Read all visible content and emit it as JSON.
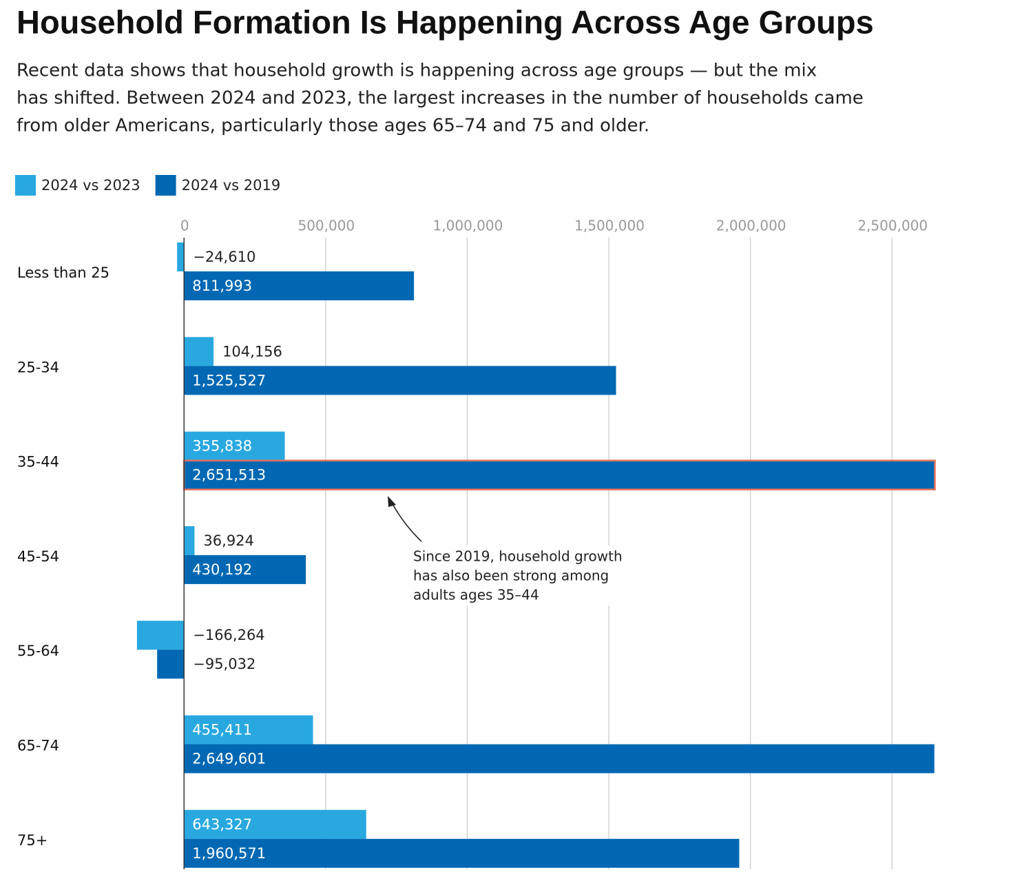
{
  "chart_data": {
    "type": "bar",
    "orientation": "horizontal",
    "title": "Household Formation Is Happening Across Age Groups",
    "subtitle": [
      "Recent data shows that household growth is happening across age groups — but the mix",
      "has shifted. Between 2024 and 2023, the largest increases in the number of households came",
      "from older Americans, particularly those ages 65–74 and 75 and older."
    ],
    "categories": [
      "Less than 25",
      "25-34",
      "35-44",
      "45-54",
      "55-64",
      "65-74",
      "75+"
    ],
    "series": [
      {
        "name": "2024 vs 2023",
        "color": "#29a8e0",
        "values": [
          -24610,
          104156,
          355838,
          36924,
          -166264,
          455411,
          643327
        ],
        "value_labels": [
          "−24,610",
          "104,156",
          "355,838",
          "36,924",
          "−166,264",
          "455,411",
          "643,327"
        ]
      },
      {
        "name": "2024 vs 2019",
        "color": "#0068b3",
        "values": [
          811993,
          1525527,
          2651513,
          430192,
          -95032,
          2649601,
          1960571
        ],
        "value_labels": [
          "811,993",
          "1,525,527",
          "2,651,513",
          "430,192",
          "−95,032",
          "2,649,601",
          "1,960,571"
        ]
      }
    ],
    "xlim": [
      -200000,
      2700000
    ],
    "xticks": [
      0,
      {
        "value": 500000,
        "label": "500,000"
      },
      {
        "value": 1000000,
        "label": "1,000,000"
      },
      {
        "value": 1500000,
        "label": "1,500,000"
      },
      {
        "value": 2000000,
        "label": "2,000,000"
      },
      {
        "value": 2500000,
        "label": "2,500,000"
      }
    ],
    "grid": true,
    "legend": "top-left",
    "annotation": [
      "Since 2019, household growth",
      "has also been strong among",
      "adults ages 35–44"
    ]
  }
}
